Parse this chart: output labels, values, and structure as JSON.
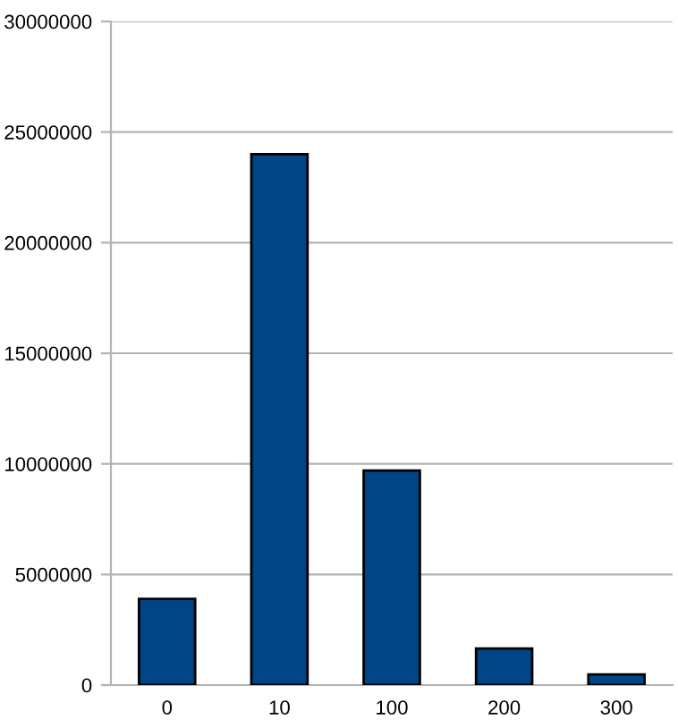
{
  "chart_data": {
    "type": "bar",
    "categories": [
      "0",
      "10",
      "100",
      "200",
      "300"
    ],
    "values": [
      3900000,
      24000000,
      9700000,
      1650000,
      480000
    ],
    "color": "#004586",
    "ylim": [
      0,
      30000000
    ],
    "yticks": [
      0,
      5000000,
      10000000,
      15000000,
      20000000,
      25000000,
      30000000
    ],
    "grid": "y"
  }
}
